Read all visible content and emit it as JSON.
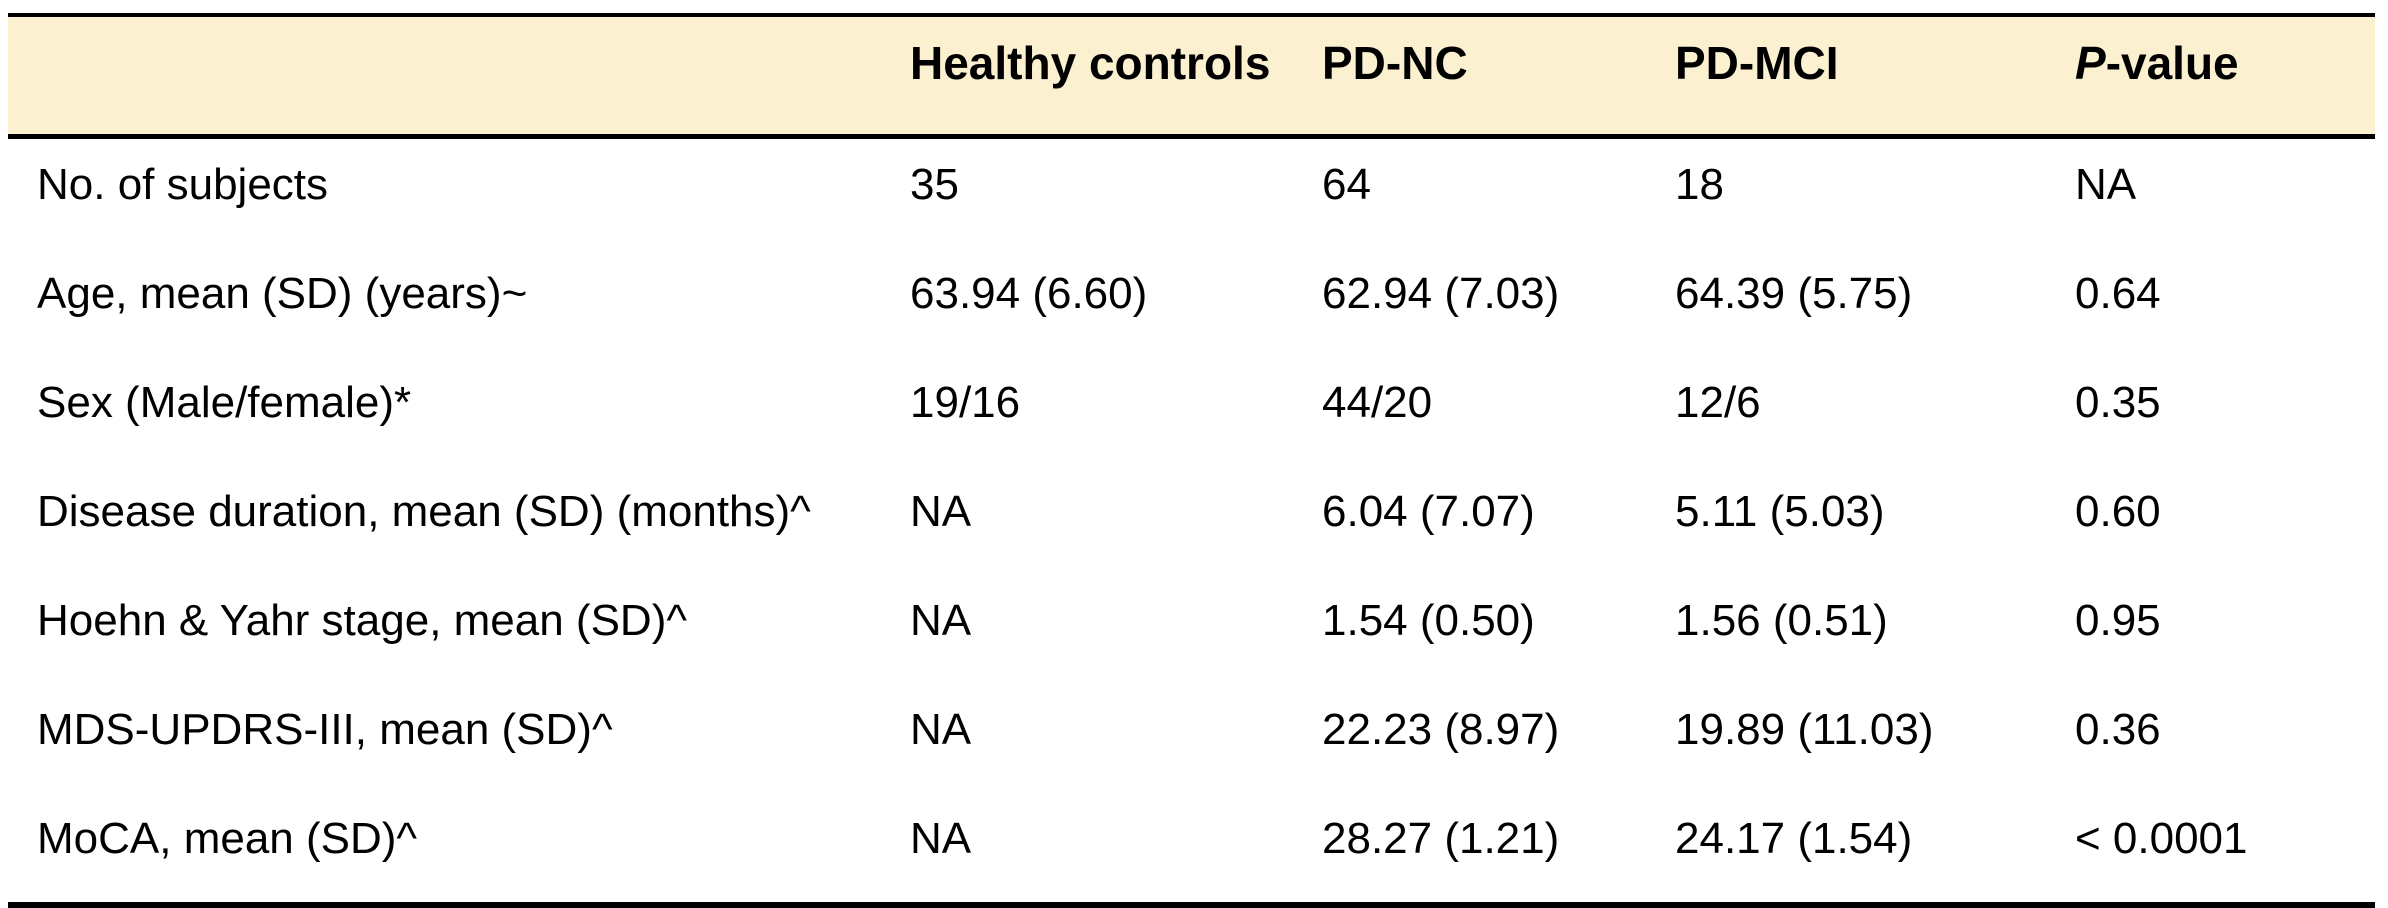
{
  "table": {
    "title_semantic": "participant-characteristics-table",
    "colors": {
      "header_bg": "#FBF0CF",
      "border": "#000000",
      "text": "#000000",
      "page_bg": "#FFFFFF"
    },
    "columns": [
      {
        "label": ""
      },
      {
        "label": "Healthy controls"
      },
      {
        "label": "PD-NC"
      },
      {
        "label": "PD-MCI"
      },
      {
        "label_italic": "P",
        "label_rest": "-value"
      }
    ],
    "rows": [
      {
        "label": "No. of subjects",
        "values": [
          "35",
          "64",
          "18",
          "NA"
        ]
      },
      {
        "label": "Age, mean (SD) (years)~",
        "values": [
          "63.94 (6.60)",
          "62.94 (7.03)",
          "64.39 (5.75)",
          "0.64"
        ]
      },
      {
        "label": "Sex (Male/female)*",
        "values": [
          "19/16",
          "44/20",
          "12/6",
          "0.35"
        ]
      },
      {
        "label": "Disease duration, mean (SD) (months)^",
        "values": [
          "NA",
          "6.04 (7.07)",
          "5.11 (5.03)",
          "0.60"
        ]
      },
      {
        "label": "Hoehn & Yahr stage, mean (SD)^",
        "values": [
          "NA",
          "1.54 (0.50)",
          "1.56 (0.51)",
          "0.95"
        ]
      },
      {
        "label": "MDS-UPDRS-III, mean (SD)^",
        "values": [
          "NA",
          "22.23 (8.97)",
          "19.89 (11.03)",
          "0.36"
        ]
      },
      {
        "label": "MoCA, mean (SD)^",
        "values": [
          "NA",
          "28.27 (1.21)",
          "24.17 (1.54)",
          "< 0.0001"
        ]
      }
    ]
  },
  "chart_data": {
    "type": "table",
    "title": "",
    "columns": [
      "",
      "Healthy controls",
      "PD-NC",
      "PD-MCI",
      "P-value"
    ],
    "rows": [
      [
        "No. of subjects",
        "35",
        "64",
        "18",
        "NA"
      ],
      [
        "Age, mean (SD) (years)~",
        "63.94 (6.60)",
        "62.94 (7.03)",
        "64.39 (5.75)",
        "0.64"
      ],
      [
        "Sex (Male/female)*",
        "19/16",
        "44/20",
        "12/6",
        "0.35"
      ],
      [
        "Disease duration, mean (SD) (months)^",
        "NA",
        "6.04 (7.07)",
        "5.11 (5.03)",
        "0.60"
      ],
      [
        "Hoehn & Yahr stage, mean (SD)^",
        "NA",
        "1.54 (0.50)",
        "1.56 (0.51)",
        "0.95"
      ],
      [
        "MDS-UPDRS-III, mean (SD)^",
        "NA",
        "22.23 (8.97)",
        "19.89 (11.03)",
        "0.36"
      ],
      [
        "MoCA, mean (SD)^",
        "NA",
        "28.27 (1.21)",
        "24.17 (1.54)",
        "< 0.0001"
      ]
    ]
  }
}
